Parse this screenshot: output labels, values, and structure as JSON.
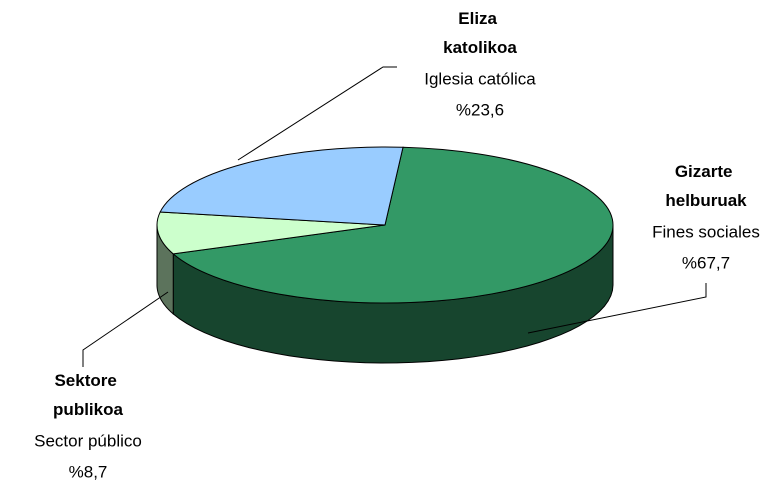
{
  "chart_data": {
    "type": "pie",
    "categories": [
      "Gizarte helburuak",
      "Sektore publikoa",
      "Eliza katolikoa"
    ],
    "subcategories": [
      "Fines sociales",
      "Sector público",
      "Iglesia católica"
    ],
    "values": [
      67.7,
      8.7,
      23.6
    ],
    "value_labels": [
      "%67,7",
      "%8,7",
      "%23,6"
    ],
    "colors": [
      "#339966",
      "#ccffcc",
      "#99ccff"
    ]
  }
}
